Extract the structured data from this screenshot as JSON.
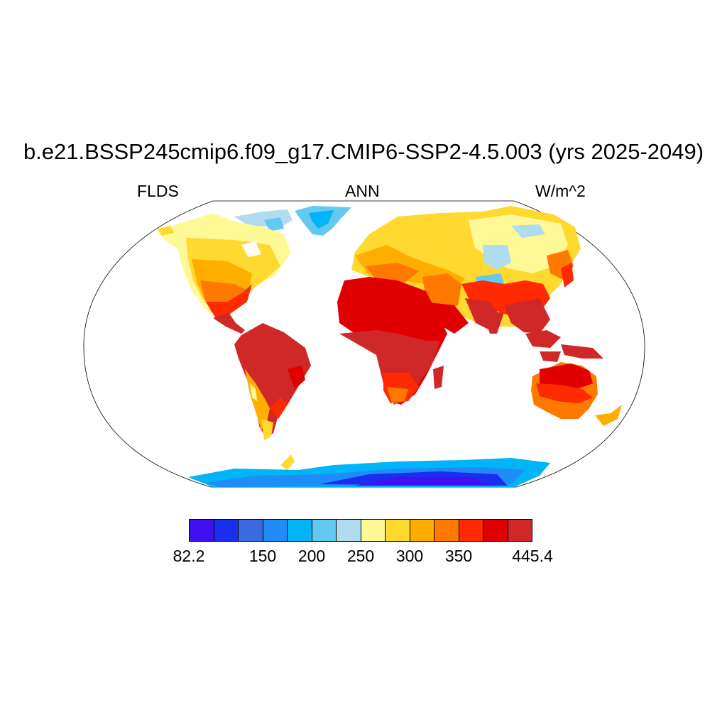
{
  "title": "b.e21.BSSP245cmip6.f09_g17.CMIP6-SSP2-4.5.003 (yrs 2025-2049)",
  "subtitle_left": "FLDS",
  "subtitle_center": "ANN",
  "subtitle_right": "W/m^2",
  "colorbar": {
    "colors": [
      "#4010f0",
      "#1a2ef0",
      "#3c6ae0",
      "#1f8cf8",
      "#00b4f8",
      "#64c8f0",
      "#b0dcf0",
      "#fff896",
      "#ffd830",
      "#ffae00",
      "#ff7800",
      "#ff2a00",
      "#e00000",
      "#d02828"
    ],
    "tick_labels": [
      "82.2",
      "150",
      "200",
      "250",
      "300",
      "350",
      "445.4"
    ]
  }
}
